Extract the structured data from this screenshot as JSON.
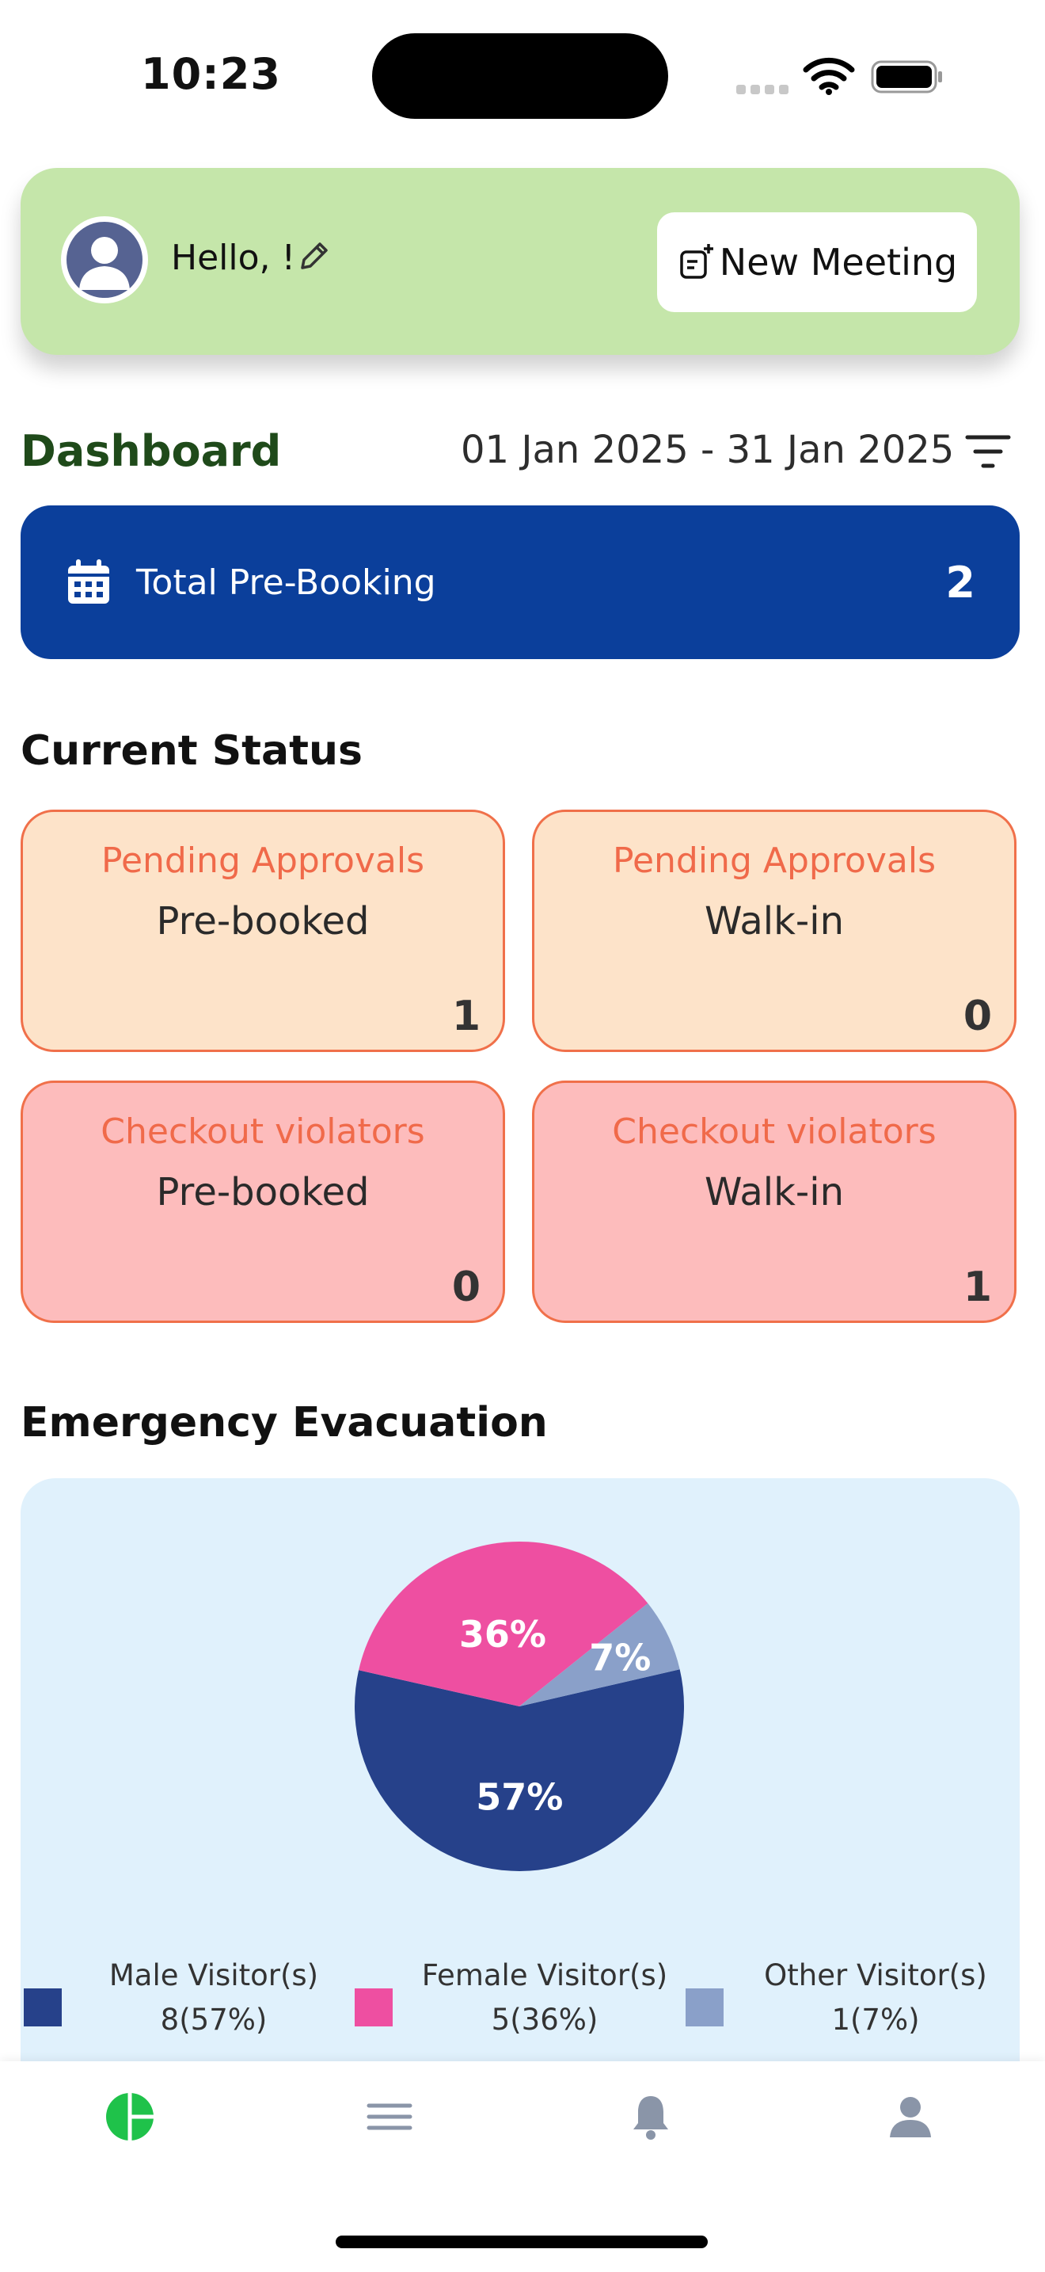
{
  "status_bar": {
    "time": "10:23"
  },
  "header": {
    "greeting": "Hello,  !",
    "new_meeting_label": "New Meeting"
  },
  "dashboard": {
    "title": "Dashboard",
    "date_range": "01 Jan 2025 - 31 Jan 2025"
  },
  "prebooking": {
    "label": "Total Pre-Booking",
    "count": "2"
  },
  "current_status": {
    "title": "Current Status",
    "cards": [
      {
        "title": "Pending Approvals",
        "subtitle": "Pre-booked",
        "count": "1"
      },
      {
        "title": "Pending Approvals",
        "subtitle": "Walk-in",
        "count": "0"
      },
      {
        "title": "Checkout violators",
        "subtitle": "Pre-booked",
        "count": "0"
      },
      {
        "title": "Checkout violators",
        "subtitle": "Walk-in",
        "count": "1"
      }
    ]
  },
  "evacuation": {
    "title": "Emergency Evacuation",
    "legend": [
      {
        "label": "Male Visitor(s)",
        "value": "8(57%)",
        "color": "#26418a"
      },
      {
        "label": "Female Visitor(s)",
        "value": "5(36%)",
        "color": "#ee4fa1"
      },
      {
        "label": "Other Visitor(s)",
        "value": "1(7%)",
        "color": "#8aa0c9"
      }
    ]
  },
  "chart_data": {
    "type": "pie",
    "categories": [
      "Male Visitor(s)",
      "Female Visitor(s)",
      "Other Visitor(s)"
    ],
    "values": [
      8,
      5,
      1
    ],
    "labels": [
      "57%",
      "36%",
      "7%"
    ],
    "colors": [
      "#26418a",
      "#ee4fa1",
      "#8aa0c9"
    ]
  },
  "colors": {
    "greeting_card": "#c5e6aa",
    "banner": "#0b3f9b",
    "pending_card": "#fde3c9",
    "violator_card": "#fdbcbc",
    "accent_orange": "#f06a4a",
    "nav_active": "#1fc24a"
  },
  "nav": {
    "items": [
      {
        "icon": "dashboard-pie-icon",
        "active": true
      },
      {
        "icon": "menu-icon",
        "active": false
      },
      {
        "icon": "bell-icon",
        "active": false
      },
      {
        "icon": "user-icon",
        "active": false
      }
    ]
  }
}
